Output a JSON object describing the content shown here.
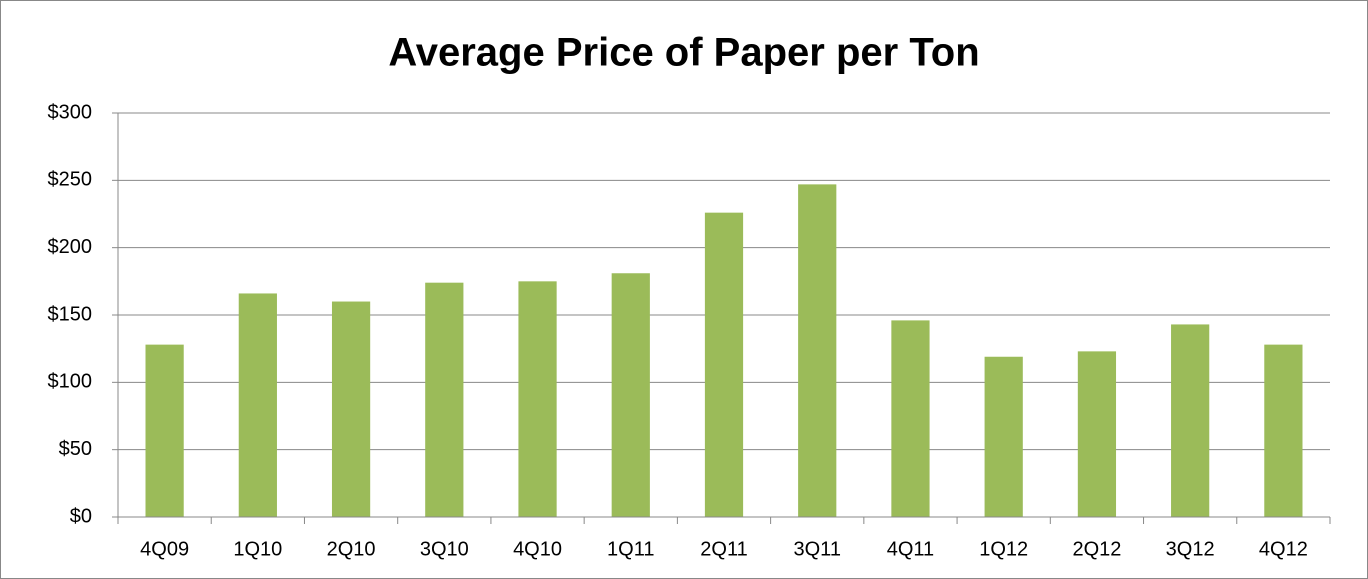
{
  "chart_data": {
    "type": "bar",
    "title": "Average Price of Paper per Ton",
    "categories": [
      "4Q09",
      "1Q10",
      "2Q10",
      "3Q10",
      "4Q10",
      "1Q11",
      "2Q11",
      "3Q11",
      "4Q11",
      "1Q12",
      "2Q12",
      "3Q12",
      "4Q12"
    ],
    "values": [
      128,
      166,
      160,
      174,
      175,
      181,
      226,
      247,
      146,
      119,
      123,
      143,
      128
    ],
    "color": "#9bbb59",
    "ylim": [
      0,
      300
    ],
    "yticks": [
      {
        "value": 0,
        "label": "$0"
      },
      {
        "value": 50,
        "label": "$50"
      },
      {
        "value": 100,
        "label": "$100"
      },
      {
        "value": 150,
        "label": "$150"
      },
      {
        "value": 200,
        "label": "$200"
      },
      {
        "value": 250,
        "label": "$250"
      },
      {
        "value": 300,
        "label": "$300"
      }
    ],
    "grid": true
  }
}
